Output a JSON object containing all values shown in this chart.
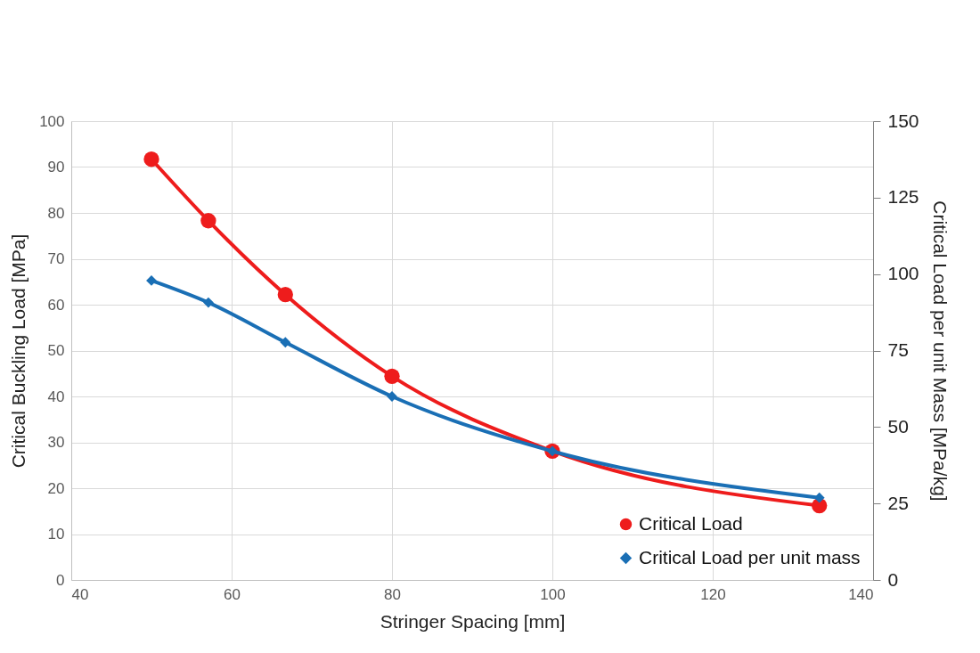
{
  "chart_data": {
    "type": "line",
    "xlabel": "Stringer Spacing [mm]",
    "ylabel": "Critical Buckling Load [MPa]",
    "y2label": "Critical Load per unit Mass [MPa/kg]",
    "x": [
      50,
      57.1,
      66.7,
      80,
      100,
      133.3
    ],
    "series": [
      {
        "name": "Critical Load",
        "color": "#ee1c1c",
        "marker": "circle",
        "values": [
          91.7,
          78.3,
          62.2,
          44.4,
          28.1,
          16.2
        ]
      },
      {
        "name": "Critical Load per unit mass",
        "color": "#1a6fb5",
        "marker": "diamond",
        "axis": "y2",
        "values": [
          97.9,
          90.7,
          77.7,
          60,
          42.1,
          26.9
        ]
      }
    ],
    "xlim": [
      40,
      140
    ],
    "xticks": [
      40,
      60,
      80,
      100,
      120,
      140
    ],
    "ylim": [
      0,
      100
    ],
    "yticks": [
      0,
      10,
      20,
      30,
      40,
      50,
      60,
      70,
      80,
      90,
      100
    ],
    "y2lim": [
      0,
      150
    ],
    "y2ticks": [
      0,
      25,
      50,
      75,
      100,
      125,
      150
    ],
    "grid": true,
    "legend": "bottom right",
    "line_style": "solid"
  }
}
